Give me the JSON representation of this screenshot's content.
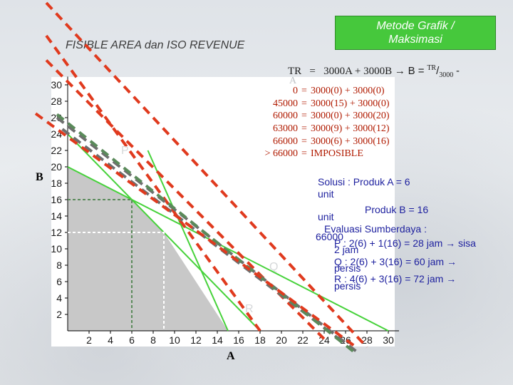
{
  "slide": {
    "title_lines": [
      "Metode Grafik /",
      "Maksimasi"
    ],
    "subtitle": "FISIBLE AREA dan ISO REVENUE",
    "tr_header": {
      "lhs": "TR",
      "eq": "=",
      "expr": "3000A + 3000B",
      "arrow": "→",
      "rhs_b": "B =",
      "rhs_tr_sup": "TR",
      "rhs_slash": "/",
      "rhs_sub": "3000",
      "rhs_tail": "-"
    },
    "label_a_top": "A",
    "calc_rows": [
      {
        "value": "0",
        "eq": "=",
        "formula": "3000(0) + 3000(0)"
      },
      {
        "value": "45000",
        "eq": "=",
        "formula": "3000(15) + 3000(0)"
      },
      {
        "value": "60000",
        "eq": "=",
        "formula": "3000(0) + 3000(20)"
      },
      {
        "value": "63000",
        "eq": "=",
        "formula": "3000(9) + 3000(12)"
      },
      {
        "value": "66000",
        "eq": "=",
        "formula": "3000(6) + 3000(16)"
      },
      {
        "value": "> 66000",
        "eq": "=",
        "formula": "IMPOSIBLE"
      }
    ],
    "solution": {
      "line1": "Solusi :  Produk A  =  6",
      "line2": "unit",
      "line3": "Produk B  =  16",
      "line4": "unit",
      "line5": "Evaluasi Sumberdaya :",
      "line6": "66000",
      "line7": "P : 2(6) + 1(16)  = 28 jam",
      "line7_arrow": "→",
      "line7_tail": "sisa",
      "line8": "2 jam",
      "line9": "Q : 2(6) + 3(16)  = 60 jam",
      "line9_arrow": "→",
      "line10": "persis",
      "line11": "R : 4(6) + 3(16)  = 72 jam",
      "line11_arrow": "→",
      "line12": "persis"
    },
    "axis_letter_b": "B",
    "axis_letter_a": "A",
    "faint_labels": {
      "p": "P",
      "q": "Q",
      "r": "R"
    }
  },
  "colors": {
    "title_box": "#46c83c",
    "constraint_lines": "#46d23a",
    "iso_red": "#e03a1e",
    "iso_green": "#5a8a5a",
    "iso_gray": "#6e6e6e",
    "feasible_fill": "#c8c8c8",
    "calc_text": "#b01a00",
    "solution_text": "#1c1f9e"
  },
  "chart_data": {
    "type": "line",
    "xlim": [
      0,
      31
    ],
    "ylim": [
      0,
      31
    ],
    "x_ticks": [
      2,
      4,
      6,
      8,
      10,
      12,
      14,
      16,
      18,
      20,
      22,
      24,
      26,
      28,
      30
    ],
    "y_ticks": [
      2,
      4,
      6,
      8,
      10,
      12,
      14,
      16,
      18,
      20,
      22,
      24,
      26,
      28,
      30
    ],
    "grid": false,
    "constraints": [
      {
        "name": "P",
        "points": [
          [
            7.5,
            22
          ],
          [
            15,
            0
          ]
        ]
      },
      {
        "name": "Q",
        "points": [
          [
            0,
            20
          ],
          [
            30,
            0
          ]
        ]
      },
      {
        "name": "R",
        "points": [
          [
            0,
            24
          ],
          [
            18,
            0
          ]
        ]
      }
    ],
    "feasible_region": [
      [
        0,
        0
      ],
      [
        0,
        20
      ],
      [
        6,
        16
      ],
      [
        9,
        12
      ],
      [
        15,
        0
      ]
    ],
    "optimum": {
      "x": 6,
      "y": 16
    },
    "alternate": {
      "x": 9,
      "y": 12
    },
    "iso_revenue_lines": [
      {
        "style": "red",
        "points": [
          [
            -2,
            36
          ],
          [
            18,
            0
          ]
        ]
      },
      {
        "style": "red",
        "points": [
          [
            -2,
            33
          ],
          [
            24,
            -1
          ]
        ]
      },
      {
        "style": "gray",
        "points": [
          [
            -0.5,
            24.6
          ],
          [
            26,
            -1.6
          ]
        ]
      },
      {
        "style": "gray",
        "points": [
          [
            -1,
            26
          ],
          [
            27,
            -2.5
          ]
        ]
      },
      {
        "style": "green",
        "points": [
          [
            -1,
            26.4
          ],
          [
            27,
            -2.8
          ]
        ]
      },
      {
        "style": "red",
        "points": [
          [
            -3,
            26.5
          ],
          [
            27,
            -2
          ]
        ]
      },
      {
        "style": "red",
        "points": [
          [
            -2,
            40
          ],
          [
            28,
            -2
          ]
        ]
      }
    ]
  }
}
